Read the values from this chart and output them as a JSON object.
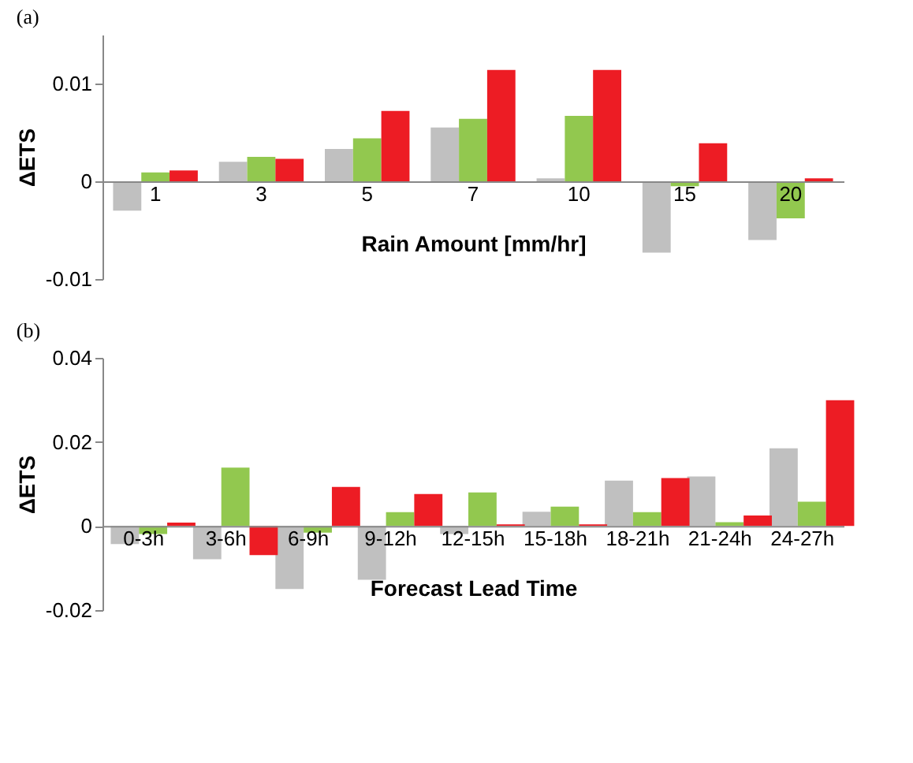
{
  "chart_data": [
    {
      "type": "bar",
      "title": "(a)",
      "xlabel": "Rain Amount [mm/hr]",
      "ylabel": "ΔETS",
      "categories": [
        "1",
        "3",
        "5",
        "7",
        "10",
        "15",
        "20"
      ],
      "ylim": [
        -0.01,
        0.015
      ],
      "yticks": [
        -0.01,
        0,
        0.01
      ],
      "grid": false,
      "legend": false,
      "series": [
        {
          "color": "#c0c0c0",
          "values": [
            -0.003,
            0.002,
            0.0033,
            0.0055,
            0.0003,
            -0.0073,
            -0.006
          ]
        },
        {
          "color": "#92c84f",
          "values": [
            0.0009,
            0.0025,
            0.0044,
            0.0064,
            0.0067,
            -0.0005,
            -0.0038
          ]
        },
        {
          "color": "#ed1c24",
          "values": [
            0.0011,
            0.0023,
            0.0072,
            0.0114,
            0.0114,
            0.0039,
            0.0003
          ]
        }
      ]
    },
    {
      "type": "bar",
      "title": "(b)",
      "xlabel": "Forecast Lead Time",
      "ylabel": "ΔETS",
      "categories": [
        "0-3h",
        "3-6h",
        "6-9h",
        "9-12h",
        "12-15h",
        "15-18h",
        "18-21h",
        "21-24h",
        "24-27h"
      ],
      "ylim": [
        -0.02,
        0.04
      ],
      "yticks": [
        -0.02,
        0,
        0.02,
        0.04
      ],
      "grid": false,
      "legend": false,
      "series": [
        {
          "color": "#c0c0c0",
          "values": [
            -0.0043,
            -0.0079,
            -0.015,
            -0.0128,
            -0.0019,
            0.0034,
            0.0108,
            0.0118,
            0.0185
          ]
        },
        {
          "color": "#92c84f",
          "values": [
            -0.0019,
            0.0139,
            -0.0016,
            0.0033,
            0.008,
            0.0046,
            0.0033,
            0.0009,
            0.0058
          ]
        },
        {
          "color": "#ed1c24",
          "values": [
            0.0008,
            -0.0069,
            0.0093,
            0.0076,
            0.0004,
            0.0004,
            0.0114,
            0.0025,
            0.0299
          ]
        }
      ]
    }
  ]
}
